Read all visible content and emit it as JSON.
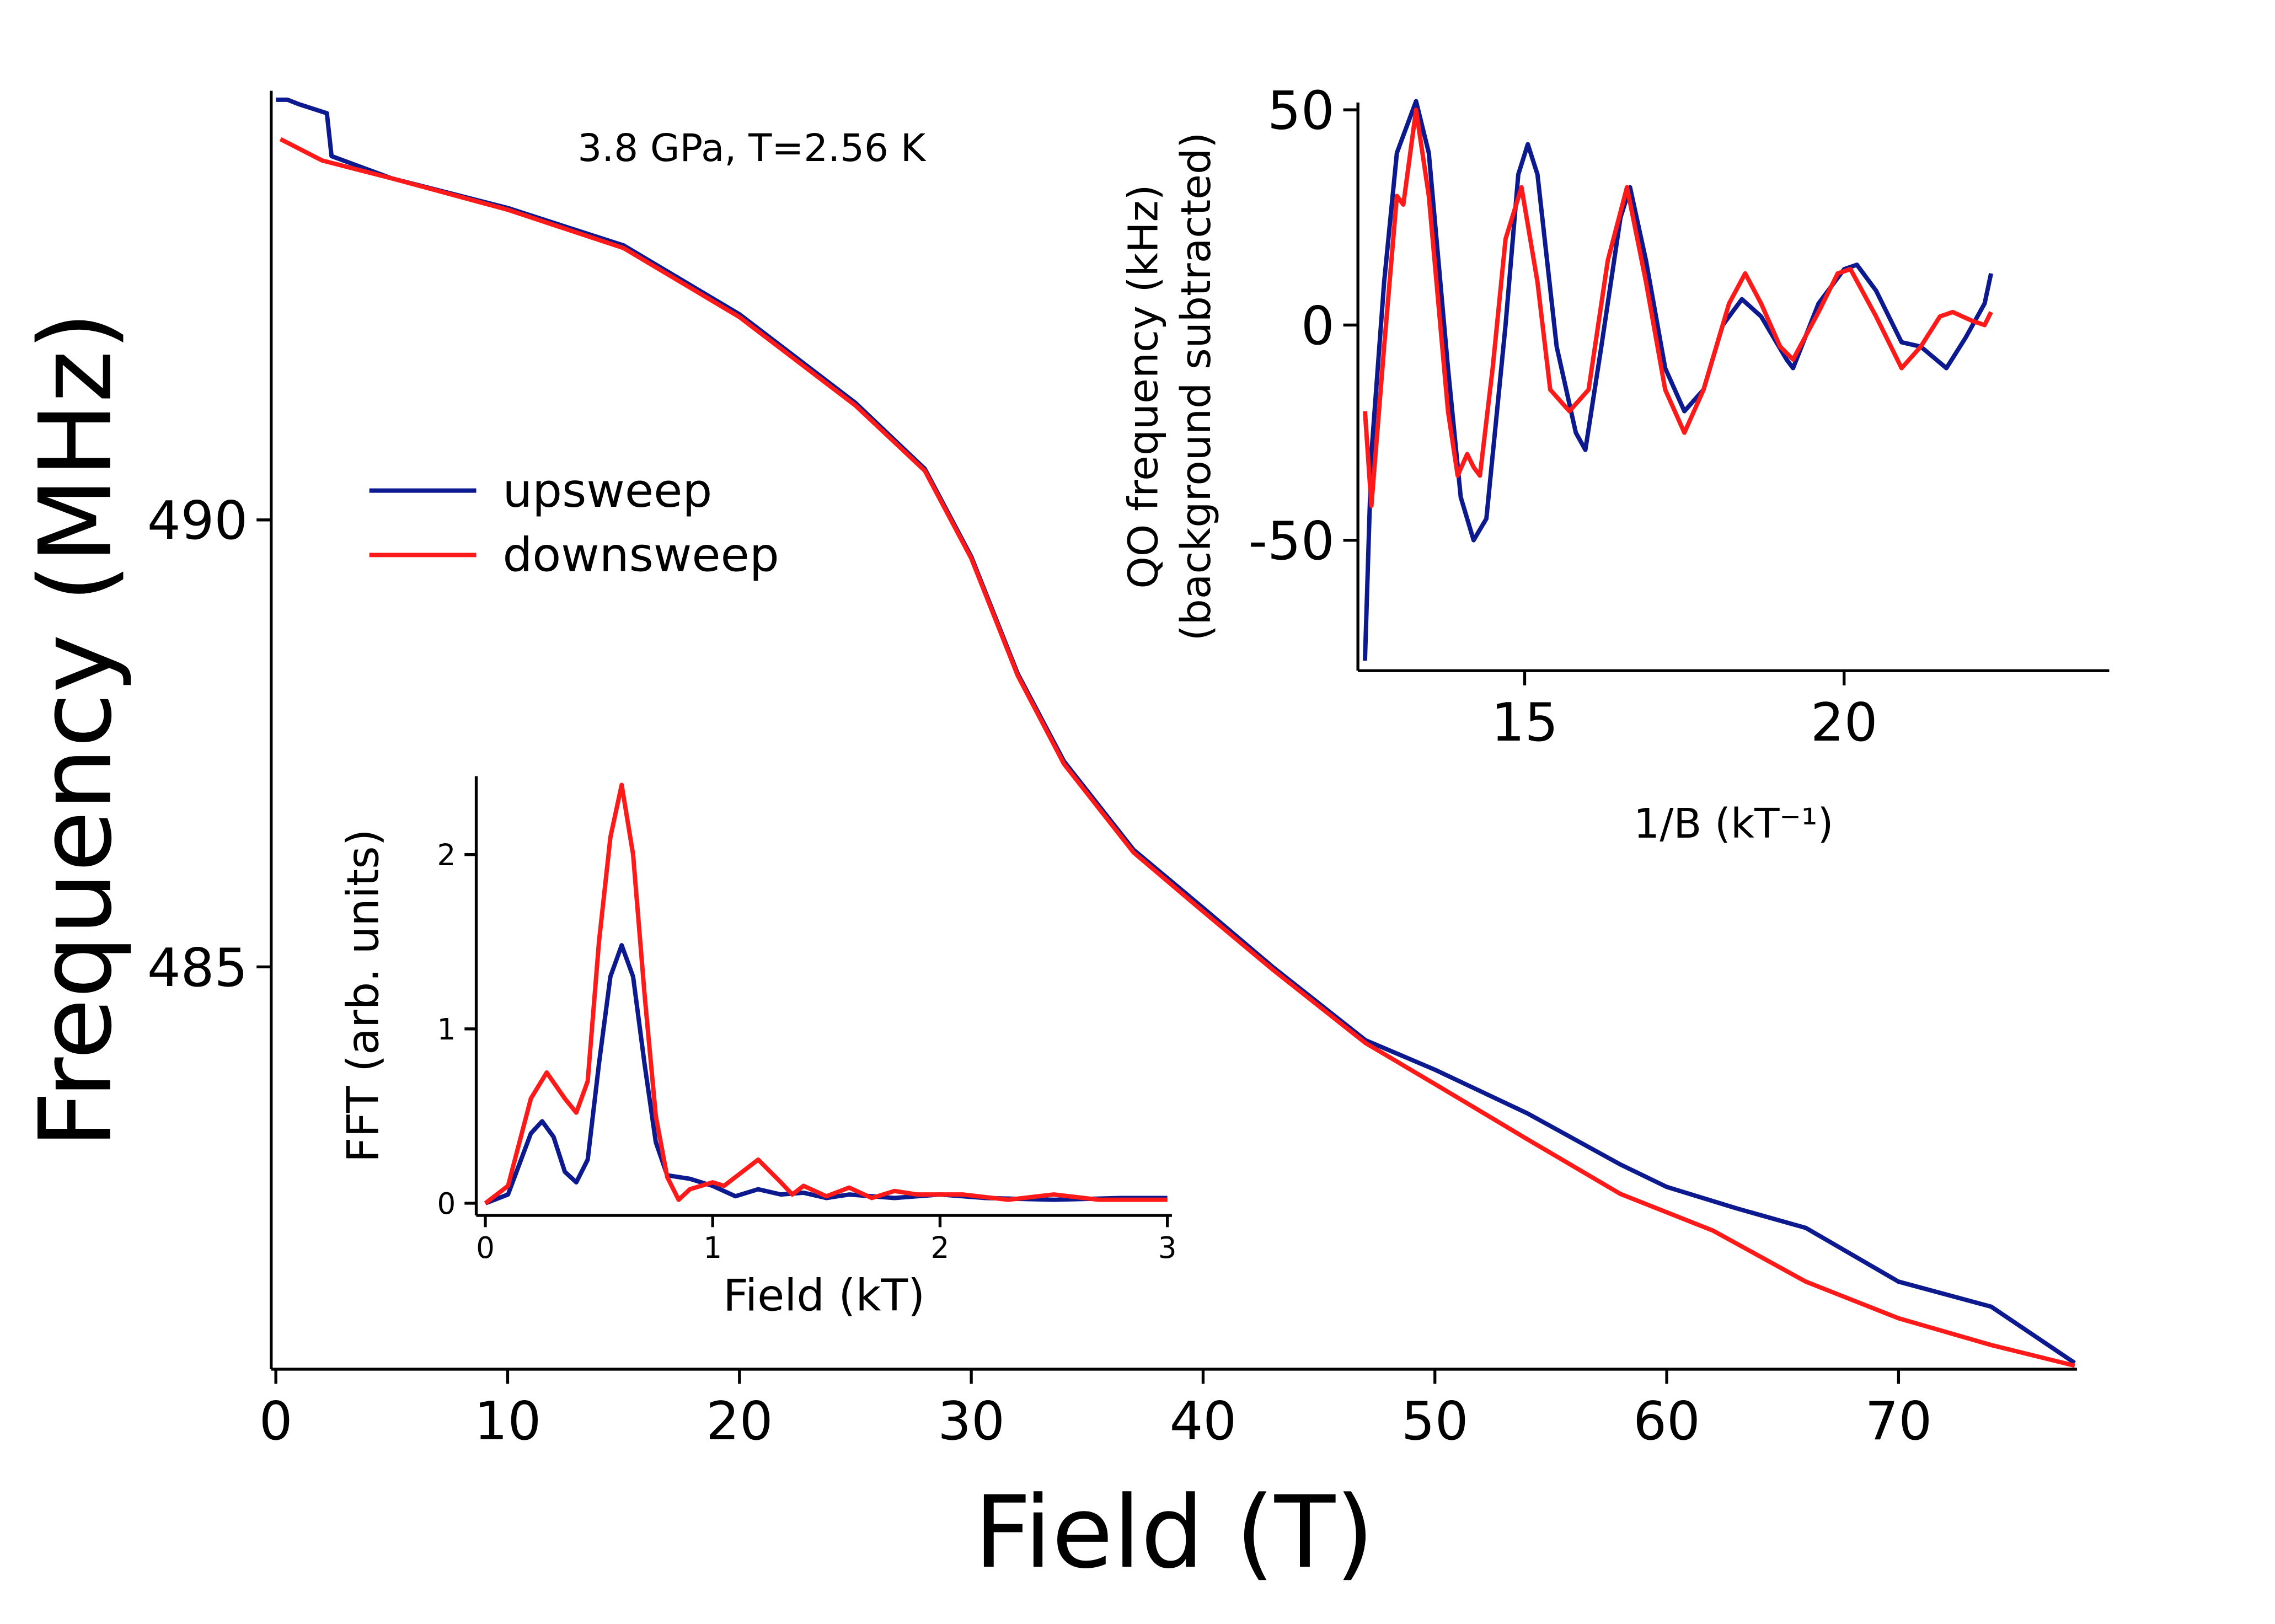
{
  "chart_data": [
    {
      "type": "line",
      "xlabel": "Field (T)",
      "ylabel": "Frequency (MHz)",
      "annotation": "3.8 GPa, T=2.56 K",
      "xlim": [
        -0.2,
        77.7
      ],
      "ylim": [
        480.5,
        494.8
      ],
      "xticks": [
        0,
        10,
        20,
        30,
        40,
        50,
        60,
        70
      ],
      "yticks": [
        485,
        490
      ],
      "series": [
        {
          "name": "upsweep",
          "color": "#0d1a8f",
          "x": [
            0,
            0.5,
            1,
            2.2,
            2.4,
            5,
            10,
            15,
            20,
            25,
            28,
            30,
            32,
            34,
            37,
            40,
            43,
            47,
            50,
            54,
            58,
            60,
            63,
            66,
            70,
            74,
            77.6
          ],
          "values": [
            494.7,
            494.7,
            494.65,
            494.55,
            494.07,
            493.82,
            493.49,
            493.07,
            492.3,
            491.31,
            490.57,
            489.59,
            488.28,
            487.3,
            486.31,
            485.66,
            485.0,
            484.18,
            483.85,
            483.36,
            482.79,
            482.54,
            482.3,
            482.08,
            481.48,
            481.2,
            480.57
          ]
        },
        {
          "name": "downsweep",
          "color": "#ff1a1a",
          "x": [
            0.2,
            2,
            5,
            10,
            15,
            20,
            25,
            28,
            30,
            32,
            34,
            37,
            40,
            43,
            47,
            50,
            54,
            58,
            62,
            66,
            70,
            74,
            77.6
          ],
          "values": [
            494.26,
            494.02,
            493.82,
            493.47,
            493.04,
            492.27,
            491.28,
            490.55,
            489.57,
            488.26,
            487.27,
            486.28,
            485.62,
            484.97,
            484.15,
            483.69,
            483.07,
            482.46,
            482.05,
            481.48,
            481.07,
            480.77,
            480.54
          ]
        }
      ]
    },
    {
      "type": "line",
      "xlabel": "1/B (kT⁻¹)",
      "ylabel": [
        "QO frequency (kHz)",
        "(background subtracted)"
      ],
      "xlim": [
        12.39,
        24.15
      ],
      "ylim": [
        -80.3,
        51.7
      ],
      "xticks": [
        15,
        20
      ],
      "yticks": [
        -50,
        0,
        50
      ],
      "series": [
        {
          "name": "upsweep",
          "color": "#0d1a8f",
          "x": [
            12.5,
            12.6,
            12.8,
            13.0,
            13.3,
            13.5,
            13.8,
            14.0,
            14.2,
            14.4,
            14.7,
            14.9,
            15.05,
            15.2,
            15.5,
            15.8,
            15.95,
            16.2,
            16.5,
            16.65,
            16.9,
            17.2,
            17.5,
            17.8,
            18.1,
            18.4,
            18.7,
            19.1,
            19.2,
            19.6,
            20.0,
            20.2,
            20.5,
            20.9,
            21.2,
            21.6,
            21.9,
            22.2,
            22.3
          ],
          "values": [
            -78,
            -30,
            10,
            40,
            52,
            40,
            -10,
            -40,
            -50,
            -45,
            0,
            35,
            42,
            35,
            -5,
            -25,
            -29,
            -5,
            25,
            32,
            15,
            -10,
            -20,
            -15,
            0,
            6,
            2,
            -8,
            -10,
            5,
            13,
            14,
            8,
            -4,
            -5,
            -10,
            -3,
            5,
            12
          ]
        },
        {
          "name": "downsweep",
          "color": "#ff1a1a",
          "x": [
            12.5,
            12.6,
            12.8,
            13.0,
            13.1,
            13.3,
            13.5,
            13.8,
            13.95,
            14.1,
            14.2,
            14.3,
            14.5,
            14.7,
            14.95,
            15.2,
            15.4,
            15.7,
            16.0,
            16.3,
            16.6,
            16.9,
            17.2,
            17.5,
            17.8,
            18.2,
            18.45,
            18.7,
            19.0,
            19.2,
            19.6,
            19.9,
            20.1,
            20.5,
            20.9,
            21.2,
            21.5,
            21.7,
            22.0,
            22.2,
            22.3
          ],
          "values": [
            -20,
            -42,
            -5,
            30,
            28,
            50,
            30,
            -20,
            -35,
            -30,
            -33,
            -35,
            -10,
            20,
            32,
            10,
            -15,
            -20,
            -15,
            15,
            32,
            10,
            -15,
            -25,
            -15,
            5,
            12,
            5,
            -5,
            -8,
            3,
            12,
            13,
            2,
            -10,
            -5,
            2,
            3,
            1,
            0,
            3
          ]
        }
      ]
    },
    {
      "type": "line",
      "xlabel": "Field (kT)",
      "ylabel": "FFT (arb. units)",
      "xlim": [
        -0.04,
        3.02
      ],
      "ylim": [
        -0.07,
        2.45
      ],
      "xticks": [
        0,
        1,
        2,
        3
      ],
      "yticks": [
        0,
        1,
        2
      ],
      "series": [
        {
          "name": "upsweep",
          "color": "#0d1a8f",
          "x": [
            0,
            0.1,
            0.2,
            0.25,
            0.3,
            0.35,
            0.4,
            0.45,
            0.5,
            0.55,
            0.6,
            0.65,
            0.7,
            0.75,
            0.8,
            0.9,
            1.0,
            1.1,
            1.2,
            1.3,
            1.4,
            1.5,
            1.6,
            1.8,
            2.0,
            2.2,
            2.5,
            2.8,
            3.0
          ],
          "values": [
            0,
            0.05,
            0.4,
            0.47,
            0.38,
            0.18,
            0.12,
            0.25,
            0.8,
            1.3,
            1.48,
            1.3,
            0.8,
            0.35,
            0.16,
            0.14,
            0.1,
            0.04,
            0.08,
            0.05,
            0.06,
            0.03,
            0.05,
            0.03,
            0.05,
            0.03,
            0.02,
            0.03,
            0.03
          ]
        },
        {
          "name": "downsweep",
          "color": "#ff1a1a",
          "x": [
            0,
            0.1,
            0.2,
            0.27,
            0.35,
            0.4,
            0.45,
            0.5,
            0.55,
            0.6,
            0.65,
            0.7,
            0.75,
            0.8,
            0.85,
            0.9,
            1.0,
            1.05,
            1.1,
            1.2,
            1.3,
            1.35,
            1.4,
            1.5,
            1.6,
            1.7,
            1.8,
            1.9,
            2.1,
            2.3,
            2.5,
            2.7,
            3.0
          ],
          "values": [
            0,
            0.1,
            0.6,
            0.75,
            0.6,
            0.52,
            0.7,
            1.5,
            2.1,
            2.4,
            2.0,
            1.2,
            0.5,
            0.15,
            0.02,
            0.08,
            0.12,
            0.1,
            0.15,
            0.25,
            0.12,
            0.05,
            0.1,
            0.04,
            0.09,
            0.03,
            0.07,
            0.05,
            0.05,
            0.02,
            0.05,
            0.02,
            0.02
          ]
        }
      ]
    }
  ]
}
